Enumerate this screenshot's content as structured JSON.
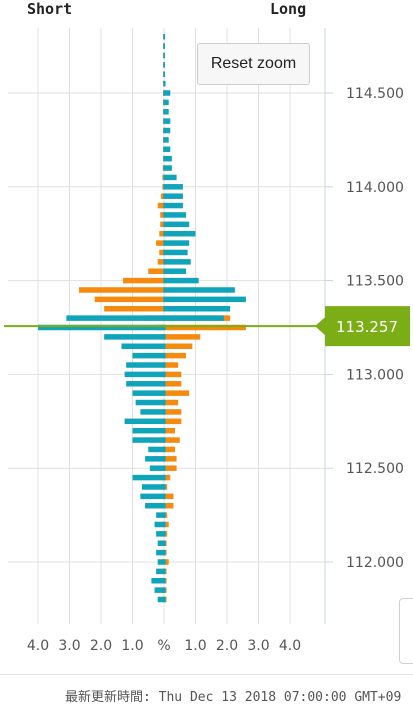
{
  "header": {
    "left_label": "Short",
    "right_label": "Long"
  },
  "controls": {
    "reset_zoom_label": "Reset zoom"
  },
  "footer": {
    "updated_text": "最新更新時間: Thu Dec 13 2018 07:00:00 GMT+09"
  },
  "colors": {
    "short": "#f48a0e",
    "long": "#10a4bb",
    "current": "#7aad16",
    "grid": "#e0e0e0",
    "axis_text": "#555555"
  },
  "chart_data": {
    "type": "bar",
    "title": "",
    "x_axis": {
      "ticks": [
        "4.0",
        "3.0",
        "2.0",
        "1.0",
        "%",
        "1.0",
        "2.0",
        "3.0",
        "4.0"
      ],
      "range": [
        -4.0,
        4.0
      ],
      "unit": "%"
    },
    "y_axis": {
      "ticks": [
        "114.500",
        "114.000",
        "113.500",
        "113.000",
        "112.500",
        "112.000"
      ],
      "range": [
        111.75,
        114.85
      ]
    },
    "current_price": "113.257",
    "series": [
      {
        "name": "Short",
        "side": "left",
        "points": [
          [
            114.8,
            0.03
          ],
          [
            114.75,
            0.03
          ],
          [
            114.7,
            0.03
          ],
          [
            114.65,
            0.03
          ],
          [
            114.6,
            0.03
          ],
          [
            114.55,
            0.03
          ],
          [
            114.5,
            0.03
          ],
          [
            114.45,
            0.03
          ],
          [
            114.4,
            0.03
          ],
          [
            114.35,
            0.03
          ],
          [
            114.3,
            0.03
          ],
          [
            114.25,
            0.03
          ],
          [
            114.2,
            0.03
          ],
          [
            114.15,
            0.03
          ],
          [
            114.1,
            0.04
          ],
          [
            114.05,
            0.05
          ],
          [
            114.0,
            0.05
          ],
          [
            113.95,
            0.1
          ],
          [
            113.9,
            0.2
          ],
          [
            113.85,
            0.12
          ],
          [
            113.8,
            0.12
          ],
          [
            113.75,
            0.15
          ],
          [
            113.7,
            0.25
          ],
          [
            113.65,
            0.15
          ],
          [
            113.6,
            0.2
          ],
          [
            113.55,
            0.5
          ],
          [
            113.5,
            1.3
          ],
          [
            113.45,
            2.7
          ],
          [
            113.4,
            2.2
          ],
          [
            113.35,
            1.9
          ],
          [
            113.3,
            0.6
          ],
          [
            113.25,
            0.25
          ],
          [
            113.2,
            0.1
          ],
          [
            113.15,
            0.05
          ],
          [
            113.1,
            0.05
          ],
          [
            113.05,
            0.05
          ],
          [
            113.0,
            0.05
          ],
          [
            112.95,
            0.05
          ],
          [
            112.9,
            0.05
          ],
          [
            112.85,
            0.05
          ],
          [
            112.8,
            0.05
          ],
          [
            112.75,
            0.05
          ],
          [
            112.7,
            0.05
          ],
          [
            112.65,
            0.05
          ],
          [
            112.6,
            0.05
          ],
          [
            112.55,
            0.05
          ],
          [
            112.5,
            0.05
          ],
          [
            112.45,
            0.05
          ],
          [
            112.4,
            0.05
          ],
          [
            112.35,
            0.05
          ],
          [
            112.3,
            0.05
          ],
          [
            112.25,
            0.05
          ],
          [
            112.2,
            0.05
          ],
          [
            112.15,
            0.05
          ],
          [
            112.1,
            0.05
          ],
          [
            112.05,
            0.05
          ],
          [
            112.0,
            0.05
          ],
          [
            111.95,
            0.05
          ],
          [
            111.9,
            0.05
          ],
          [
            111.85,
            0.05
          ],
          [
            111.8,
            0.05
          ]
        ]
      },
      {
        "name": "Long",
        "side": "left",
        "points": [
          [
            114.8,
            0.02
          ],
          [
            114.75,
            0.02
          ],
          [
            114.7,
            0.02
          ],
          [
            114.65,
            0.02
          ],
          [
            114.6,
            0.02
          ],
          [
            114.55,
            0.02
          ],
          [
            114.5,
            0.02
          ],
          [
            114.45,
            0.02
          ],
          [
            114.4,
            0.02
          ],
          [
            114.35,
            0.02
          ],
          [
            114.3,
            0.02
          ],
          [
            114.25,
            0.02
          ],
          [
            114.2,
            0.02
          ],
          [
            114.15,
            0.02
          ],
          [
            114.1,
            0.02
          ],
          [
            114.05,
            0.02
          ],
          [
            114.0,
            0.02
          ],
          [
            113.95,
            0.02
          ],
          [
            113.9,
            0.02
          ],
          [
            113.85,
            0.02
          ],
          [
            113.8,
            0.02
          ],
          [
            113.75,
            0.02
          ],
          [
            113.7,
            0.02
          ],
          [
            113.65,
            0.02
          ],
          [
            113.6,
            0.02
          ],
          [
            113.55,
            0.02
          ],
          [
            113.5,
            0.02
          ],
          [
            113.45,
            0.02
          ],
          [
            113.4,
            0.02
          ],
          [
            113.35,
            0.02
          ],
          [
            113.3,
            3.1
          ],
          [
            113.25,
            4.0
          ],
          [
            113.2,
            1.9
          ],
          [
            113.15,
            1.35
          ],
          [
            113.1,
            1.0
          ],
          [
            113.05,
            1.2
          ],
          [
            113.0,
            1.25
          ],
          [
            112.95,
            1.2
          ],
          [
            112.9,
            1.0
          ],
          [
            112.85,
            0.9
          ],
          [
            112.8,
            0.75
          ],
          [
            112.75,
            1.25
          ],
          [
            112.7,
            1.0
          ],
          [
            112.65,
            1.0
          ],
          [
            112.6,
            0.5
          ],
          [
            112.55,
            0.6
          ],
          [
            112.5,
            0.45
          ],
          [
            112.45,
            1.0
          ],
          [
            112.4,
            0.7
          ],
          [
            112.35,
            0.75
          ],
          [
            112.3,
            0.6
          ],
          [
            112.25,
            0.25
          ],
          [
            112.2,
            0.3
          ],
          [
            112.15,
            0.25
          ],
          [
            112.1,
            0.2
          ],
          [
            112.05,
            0.25
          ],
          [
            112.0,
            0.2
          ],
          [
            111.95,
            0.25
          ],
          [
            111.9,
            0.4
          ],
          [
            111.85,
            0.3
          ],
          [
            111.8,
            0.2
          ]
        ]
      },
      {
        "name": "Short",
        "side": "right",
        "points": [
          [
            114.8,
            0.02
          ],
          [
            114.75,
            0.02
          ],
          [
            114.7,
            0.02
          ],
          [
            114.65,
            0.02
          ],
          [
            114.6,
            0.02
          ],
          [
            114.55,
            0.02
          ],
          [
            114.5,
            0.02
          ],
          [
            114.45,
            0.02
          ],
          [
            114.4,
            0.02
          ],
          [
            114.35,
            0.02
          ],
          [
            114.3,
            0.02
          ],
          [
            114.25,
            0.02
          ],
          [
            114.2,
            0.02
          ],
          [
            114.15,
            0.02
          ],
          [
            114.1,
            0.02
          ],
          [
            114.05,
            0.02
          ],
          [
            114.0,
            0.02
          ],
          [
            113.95,
            0.02
          ],
          [
            113.9,
            0.02
          ],
          [
            113.85,
            0.02
          ],
          [
            113.8,
            0.02
          ],
          [
            113.75,
            0.02
          ],
          [
            113.7,
            0.02
          ],
          [
            113.65,
            0.02
          ],
          [
            113.6,
            0.02
          ],
          [
            113.55,
            0.02
          ],
          [
            113.5,
            0.02
          ],
          [
            113.45,
            0.02
          ],
          [
            113.4,
            0.02
          ],
          [
            113.35,
            0.02
          ],
          [
            113.3,
            2.1
          ],
          [
            113.25,
            2.6
          ],
          [
            113.2,
            1.15
          ],
          [
            113.15,
            0.9
          ],
          [
            113.1,
            0.7
          ],
          [
            113.05,
            0.45
          ],
          [
            113.0,
            0.55
          ],
          [
            112.95,
            0.55
          ],
          [
            112.9,
            0.8
          ],
          [
            112.85,
            0.45
          ],
          [
            112.8,
            0.55
          ],
          [
            112.75,
            0.55
          ],
          [
            112.7,
            0.35
          ],
          [
            112.65,
            0.5
          ],
          [
            112.6,
            0.35
          ],
          [
            112.55,
            0.4
          ],
          [
            112.5,
            0.4
          ],
          [
            112.45,
            0.2
          ],
          [
            112.4,
            0.1
          ],
          [
            112.35,
            0.3
          ],
          [
            112.3,
            0.3
          ],
          [
            112.25,
            0.1
          ],
          [
            112.2,
            0.15
          ],
          [
            112.15,
            0.1
          ],
          [
            112.1,
            0.08
          ],
          [
            112.05,
            0.08
          ],
          [
            112.0,
            0.15
          ],
          [
            111.95,
            0.08
          ],
          [
            111.9,
            0.08
          ],
          [
            111.85,
            0.08
          ],
          [
            111.8,
            0.08
          ]
        ]
      },
      {
        "name": "Long",
        "side": "right",
        "points": [
          [
            114.8,
            0.03
          ],
          [
            114.75,
            0.03
          ],
          [
            114.7,
            0.03
          ],
          [
            114.65,
            0.03
          ],
          [
            114.6,
            0.03
          ],
          [
            114.55,
            0.05
          ],
          [
            114.5,
            0.2
          ],
          [
            114.45,
            0.15
          ],
          [
            114.4,
            0.15
          ],
          [
            114.35,
            0.2
          ],
          [
            114.3,
            0.2
          ],
          [
            114.25,
            0.15
          ],
          [
            114.2,
            0.2
          ],
          [
            114.15,
            0.25
          ],
          [
            114.1,
            0.25
          ],
          [
            114.05,
            0.4
          ],
          [
            114.0,
            0.6
          ],
          [
            113.95,
            0.6
          ],
          [
            113.9,
            0.6
          ],
          [
            113.85,
            0.7
          ],
          [
            113.8,
            0.8
          ],
          [
            113.75,
            1.0
          ],
          [
            113.7,
            0.8
          ],
          [
            113.65,
            0.75
          ],
          [
            113.6,
            0.85
          ],
          [
            113.55,
            0.7
          ],
          [
            113.5,
            1.1
          ],
          [
            113.45,
            2.25
          ],
          [
            113.4,
            2.6
          ],
          [
            113.35,
            2.1
          ],
          [
            113.3,
            1.9
          ],
          [
            113.25,
            0.05
          ],
          [
            113.2,
            0.05
          ],
          [
            113.15,
            0.05
          ],
          [
            113.1,
            0.05
          ],
          [
            113.05,
            0.05
          ],
          [
            113.0,
            0.05
          ],
          [
            112.95,
            0.05
          ],
          [
            112.9,
            0.05
          ],
          [
            112.85,
            0.05
          ],
          [
            112.8,
            0.05
          ],
          [
            112.75,
            0.05
          ],
          [
            112.7,
            0.05
          ],
          [
            112.65,
            0.05
          ],
          [
            112.6,
            0.05
          ],
          [
            112.55,
            0.05
          ],
          [
            112.5,
            0.05
          ],
          [
            112.45,
            0.05
          ],
          [
            112.4,
            0.05
          ],
          [
            112.35,
            0.05
          ],
          [
            112.3,
            0.05
          ],
          [
            112.25,
            0.05
          ],
          [
            112.2,
            0.05
          ],
          [
            112.15,
            0.05
          ],
          [
            112.1,
            0.05
          ],
          [
            112.05,
            0.05
          ],
          [
            112.0,
            0.05
          ],
          [
            111.95,
            0.05
          ],
          [
            111.9,
            0.05
          ],
          [
            111.85,
            0.05
          ],
          [
            111.8,
            0.05
          ]
        ]
      }
    ]
  }
}
